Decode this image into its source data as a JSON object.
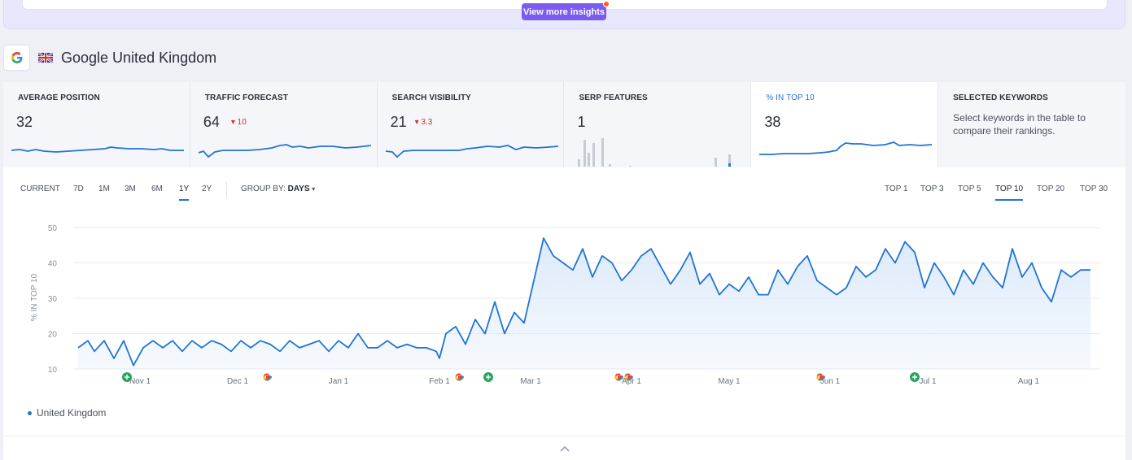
{
  "insights": {
    "button_label": "View more insights"
  },
  "engine": {
    "title": "Google United Kingdom",
    "logo_icon": "google-g-icon",
    "flag_icon": "uk-flag-icon"
  },
  "metrics": [
    {
      "label": "AVERAGE POSITION",
      "value": "32",
      "delta": ""
    },
    {
      "label": "TRAFFIC FORECAST",
      "value": "64",
      "delta": "▾ 10"
    },
    {
      "label": "SEARCH VISIBILITY",
      "value": "21",
      "delta": "▾ 3.3"
    },
    {
      "label": "SERP FEATURES",
      "value": "1",
      "delta": ""
    },
    {
      "label": "% IN TOP 10",
      "value": "38",
      "delta": ""
    },
    {
      "label": "SELECTED KEYWORDS",
      "value": "",
      "delta": "",
      "description": "Select keywords in the table to compare their rankings."
    }
  ],
  "periods": [
    "CURRENT",
    "7D",
    "1M",
    "3M",
    "6M",
    "1Y",
    "2Y"
  ],
  "selected_period": "1Y",
  "group_by": {
    "label": "GROUP BY:",
    "value": "DAYS"
  },
  "tops": [
    "TOP 1",
    "TOP 3",
    "TOP 5",
    "TOP 10",
    "TOP 20",
    "TOP 30"
  ],
  "selected_top": "TOP 10",
  "colors": {
    "accent": "#1f74d4",
    "area_fill": "#dbe9fa",
    "notes_green": "#27a85e"
  },
  "chart_data": {
    "type": "area",
    "ylabel": "% IN TOP 10",
    "ylim": [
      10,
      50
    ],
    "yticks": [
      10,
      20,
      30,
      40,
      50
    ],
    "x_start": "Oct 13",
    "x_end": "Aug 23",
    "xticks": [
      {
        "label": "Nov 1",
        "day": 19
      },
      {
        "label": "Dec 1",
        "day": 49
      },
      {
        "label": "Jan 1",
        "day": 80
      },
      {
        "label": "Feb 1",
        "day": 111
      },
      {
        "label": "Mar 1",
        "day": 139
      },
      {
        "label": "Apr 1",
        "day": 170
      },
      {
        "label": "May 1",
        "day": 200
      },
      {
        "label": "Jun 1",
        "day": 231
      },
      {
        "label": "Jul 1",
        "day": 261
      },
      {
        "label": "Aug 1",
        "day": 292
      }
    ],
    "grid": true,
    "legend_position": "bottom-left",
    "series": [
      {
        "name": "United Kingdom",
        "anchors_day": [
          0,
          3,
          5,
          8,
          11,
          14,
          17,
          20,
          23,
          26,
          29,
          32,
          35,
          38,
          41,
          44,
          47,
          50,
          53,
          56,
          59,
          62,
          65,
          68,
          71,
          74,
          77,
          80,
          83,
          86,
          89,
          92,
          95,
          98,
          101,
          104,
          107,
          110,
          111,
          113,
          116,
          119,
          122,
          125,
          128,
          131,
          134,
          137,
          140,
          143,
          146,
          149,
          152,
          155,
          158,
          161,
          164,
          167,
          170,
          173,
          176,
          179,
          182,
          185,
          188,
          191,
          194,
          197,
          200,
          203,
          206,
          209,
          212,
          215,
          218,
          221,
          224,
          227,
          230,
          233,
          236,
          239,
          242,
          245,
          248,
          251,
          254,
          257,
          260,
          263,
          266,
          269,
          272,
          275,
          278,
          281,
          284,
          287,
          290,
          293,
          296,
          299,
          302,
          305,
          308,
          311
        ],
        "anchors_value": [
          16,
          18,
          15,
          18,
          13,
          18,
          11,
          16,
          18,
          16,
          18,
          15,
          18,
          16,
          18,
          17,
          15,
          18,
          16,
          18,
          17,
          15,
          18,
          16,
          17,
          18,
          15,
          18,
          16,
          20,
          16,
          16,
          18,
          16,
          17,
          16,
          16,
          15,
          13,
          20,
          22,
          17,
          24,
          20,
          29,
          20,
          26,
          23,
          35,
          47,
          42,
          40,
          38,
          44,
          36,
          42,
          40,
          35,
          38,
          42,
          44,
          39,
          34,
          38,
          43,
          34,
          37,
          31,
          34,
          32,
          36,
          31,
          31,
          38,
          34,
          39,
          42,
          35,
          33,
          31,
          33,
          39,
          36,
          38,
          44,
          40,
          46,
          43,
          33,
          40,
          36,
          31,
          38,
          34,
          40,
          36,
          33,
          44,
          36,
          40,
          33,
          29,
          38,
          36,
          38,
          38
        ]
      }
    ],
    "annotations": [
      {
        "type": "note",
        "day": 15
      },
      {
        "type": "google-update",
        "day": 58
      },
      {
        "type": "google-update",
        "day": 117
      },
      {
        "type": "note",
        "day": 126
      },
      {
        "type": "google-update",
        "day": 166
      },
      {
        "type": "google-update",
        "day": 169
      },
      {
        "type": "google-update",
        "day": 228
      },
      {
        "type": "note",
        "day": 257
      }
    ]
  }
}
